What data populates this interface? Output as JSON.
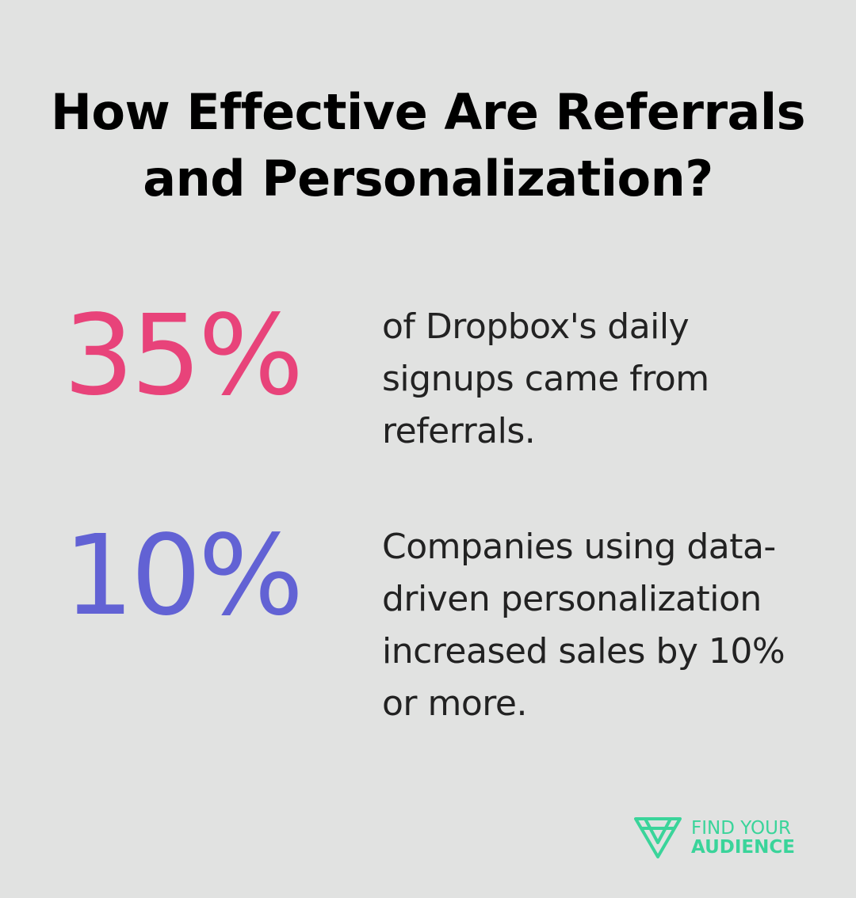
{
  "title": {
    "line1": "How Effective Are Referrals",
    "line2": "and Personalization?"
  },
  "stats": [
    {
      "value": "35%",
      "color": "#e8437a",
      "description": "of Dropbox's daily signups came from referrals."
    },
    {
      "value": "10%",
      "color": "#6262d4",
      "description": "Companies using data-driven personalization increased sales by 10% or more."
    }
  ],
  "logo": {
    "icon": "find-your-audience-logo-icon",
    "line1": "FIND YOUR",
    "line2": "AUDIENCE",
    "color": "#3ad49a"
  }
}
